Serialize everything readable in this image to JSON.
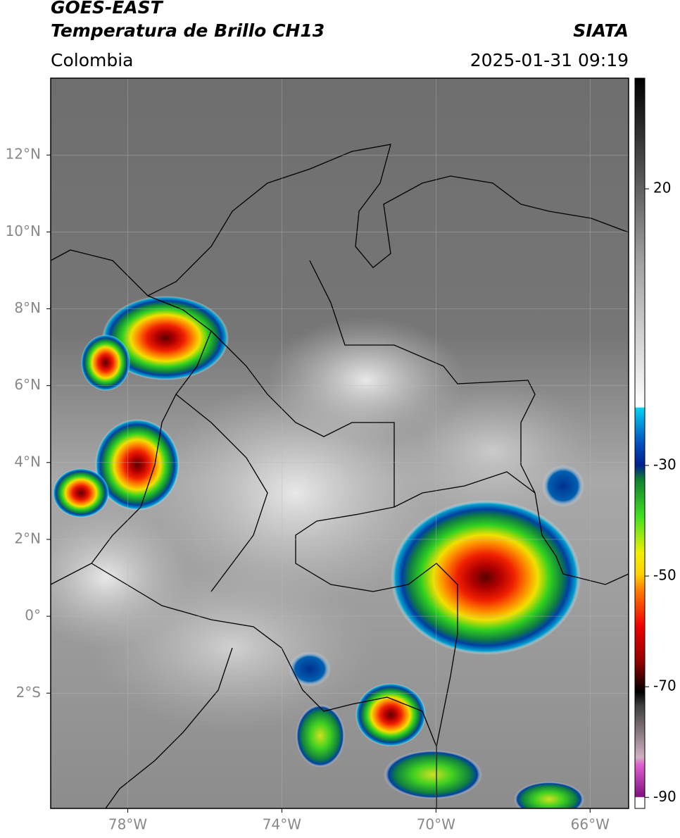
{
  "header": {
    "satellite": "GOES-EAST",
    "product": "Temperatura de Brillo CH13",
    "source": "SIATA",
    "region": "Colombia",
    "timestamp": "2025-01-31 09:19"
  },
  "map": {
    "lonlim": [
      -80,
      -65
    ],
    "latlim": [
      -5,
      14
    ],
    "grid": true,
    "lat_ticks": [
      {
        "value": 12,
        "label": "12°N"
      },
      {
        "value": 10,
        "label": "10°N"
      },
      {
        "value": 8,
        "label": "8°N"
      },
      {
        "value": 6,
        "label": "6°N"
      },
      {
        "value": 4,
        "label": "4°N"
      },
      {
        "value": 2,
        "label": "2°N"
      },
      {
        "value": 0,
        "label": "0°"
      },
      {
        "value": -2,
        "label": "2°S"
      }
    ],
    "lon_ticks": [
      {
        "value": -78,
        "label": "78°W"
      },
      {
        "value": -74,
        "label": "74°W"
      },
      {
        "value": -70,
        "label": "70°W"
      },
      {
        "value": -66,
        "label": "66°W"
      }
    ]
  },
  "colorbar": {
    "lim": [
      -92,
      40
    ],
    "ticks": [
      20,
      -30,
      -50,
      -70,
      -90
    ]
  }
}
